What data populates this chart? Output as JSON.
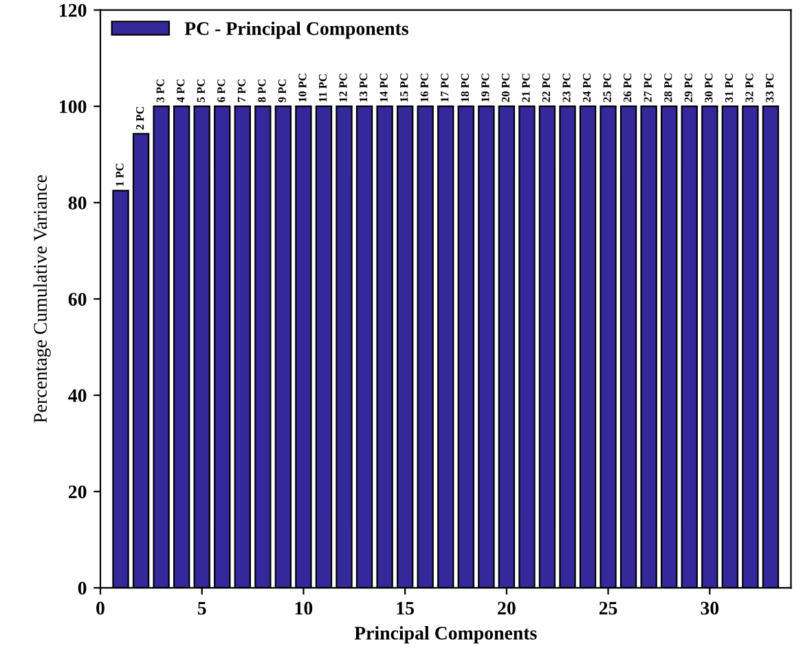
{
  "chart_data": {
    "type": "bar",
    "xlabel": "Principal Components",
    "ylabel": "Percentage Cumulative Variance",
    "x": [
      1,
      2,
      3,
      4,
      5,
      6,
      7,
      8,
      9,
      10,
      11,
      12,
      13,
      14,
      15,
      16,
      17,
      18,
      19,
      20,
      21,
      22,
      23,
      24,
      25,
      26,
      27,
      28,
      29,
      30,
      31,
      32,
      33
    ],
    "series": [
      {
        "name": "PC - Principal Components",
        "color": "#35289a",
        "values": [
          82.5,
          94.3,
          100,
          100,
          100,
          100,
          100,
          100,
          100,
          100,
          100,
          100,
          100,
          100,
          100,
          100,
          100,
          100,
          100,
          100,
          100,
          100,
          100,
          100,
          100,
          100,
          100,
          100,
          100,
          100,
          100,
          100,
          100
        ]
      }
    ],
    "annotations": [
      {
        "text": "1 PC",
        "x": 1,
        "y": 82.5
      },
      {
        "text": "2 PC",
        "x": 2,
        "y": 94.3
      },
      {
        "text": "3 PC",
        "x": 3,
        "y": 100
      },
      {
        "text": "4 PC",
        "x": 4,
        "y": 100
      },
      {
        "text": "5 PC",
        "x": 5,
        "y": 100
      },
      {
        "text": "6 PC",
        "x": 6,
        "y": 100
      },
      {
        "text": "7 PC",
        "x": 7,
        "y": 100
      },
      {
        "text": "8 PC",
        "x": 8,
        "y": 100
      },
      {
        "text": "9 PC",
        "x": 9,
        "y": 100
      },
      {
        "text": "10 PC",
        "x": 10,
        "y": 100
      },
      {
        "text": "11 PC",
        "x": 11,
        "y": 100
      },
      {
        "text": "12 PC",
        "x": 12,
        "y": 100
      },
      {
        "text": "13 PC",
        "x": 13,
        "y": 100
      },
      {
        "text": "14 PC",
        "x": 14,
        "y": 100
      },
      {
        "text": "15 PC",
        "x": 15,
        "y": 100
      },
      {
        "text": "16 PC",
        "x": 16,
        "y": 100
      },
      {
        "text": "17 PC",
        "x": 17,
        "y": 100
      },
      {
        "text": "18 PC",
        "x": 18,
        "y": 100
      },
      {
        "text": "19 PC",
        "x": 19,
        "y": 100
      },
      {
        "text": "20 PC",
        "x": 20,
        "y": 100
      },
      {
        "text": "21 PC",
        "x": 21,
        "y": 100
      },
      {
        "text": "22 PC",
        "x": 22,
        "y": 100
      },
      {
        "text": "23 PC",
        "x": 23,
        "y": 100
      },
      {
        "text": "24 PC",
        "x": 24,
        "y": 100
      },
      {
        "text": "25 PC",
        "x": 25,
        "y": 100
      },
      {
        "text": "26 PC",
        "x": 26,
        "y": 100
      },
      {
        "text": "27 PC",
        "x": 27,
        "y": 100
      },
      {
        "text": "28 PC",
        "x": 28,
        "y": 100
      },
      {
        "text": "29 PC",
        "x": 29,
        "y": 100
      },
      {
        "text": "30 PC",
        "x": 30,
        "y": 100
      },
      {
        "text": "31 PC",
        "x": 31,
        "y": 100
      },
      {
        "text": "32 PC",
        "x": 32,
        "y": 100
      },
      {
        "text": "33 PC",
        "x": 33,
        "y": 100
      }
    ],
    "xlim": [
      0,
      34
    ],
    "xticks": [
      0,
      5,
      10,
      15,
      20,
      25,
      30
    ],
    "ylim": [
      0,
      120
    ],
    "yticks": [
      0,
      20,
      40,
      60,
      80,
      100,
      120
    ],
    "grid": false,
    "legend": "top left"
  }
}
